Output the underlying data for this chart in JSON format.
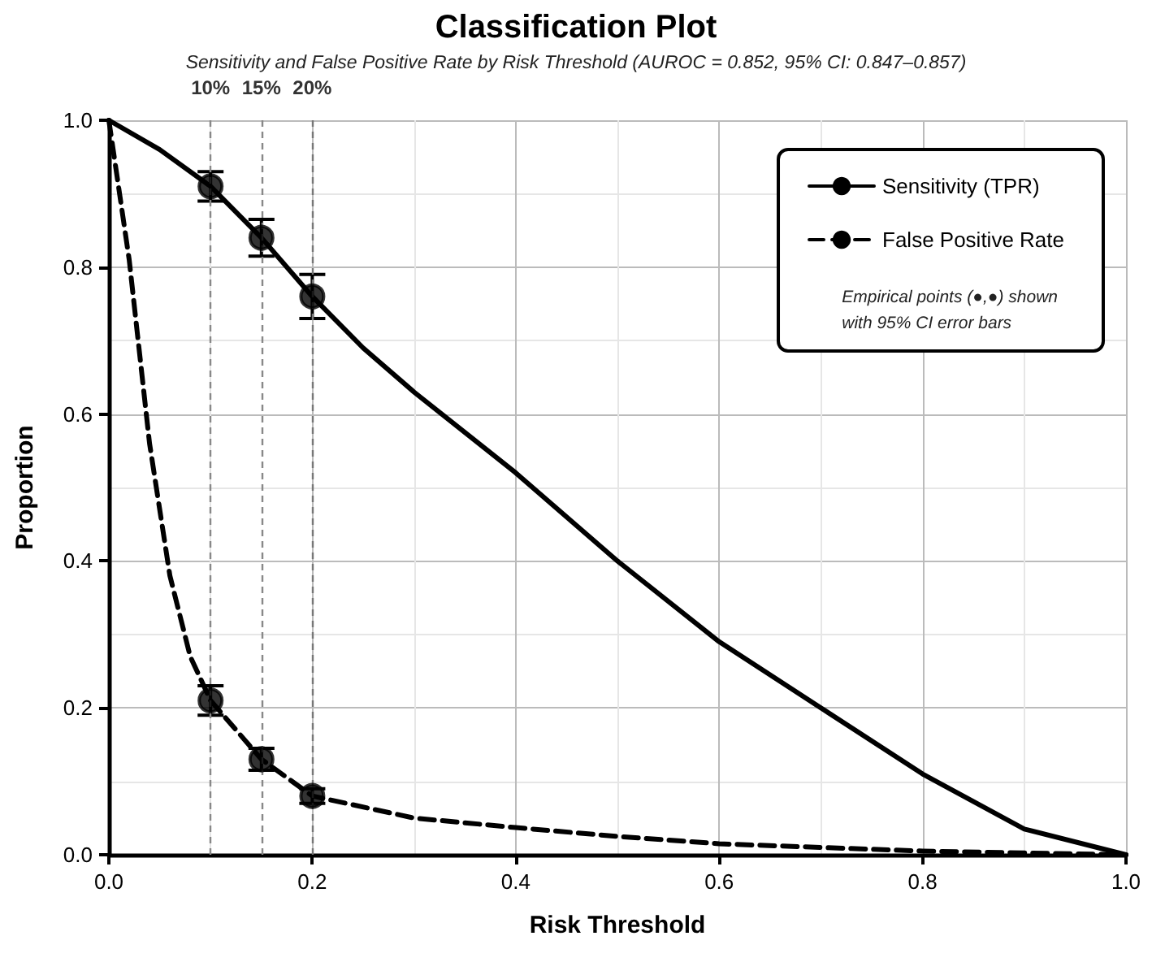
{
  "chart_data": {
    "type": "line",
    "title": "Classification Plot",
    "subtitle": "Sensitivity and False Positive Rate by Risk Threshold (AUROC = 0.852, 95% CI: 0.847–0.857)",
    "xlabel": "Risk Threshold",
    "ylabel": "Proportion",
    "series": [
      {
        "name": "Sensitivity (TPR)",
        "color": "#000000",
        "line_style": "solid",
        "x": [
          0,
          0.05,
          0.1,
          0.15,
          0.2,
          0.25,
          0.3,
          0.4,
          0.5,
          0.6,
          0.7,
          0.8,
          0.9,
          1.0
        ],
        "values": [
          1.0,
          0.96,
          0.91,
          0.84,
          0.76,
          0.69,
          0.63,
          0.52,
          0.4,
          0.29,
          0.2,
          0.11,
          0.035,
          0
        ]
      },
      {
        "type": "scatter",
        "color": "#000000",
        "marker": "circle",
        "x": [
          0.1,
          0.15,
          0.2
        ],
        "values": [
          0.91,
          0.84,
          0.76
        ],
        "errors": [
          0.02,
          0.025,
          0.03
        ]
      },
      {
        "name": "False Positive Rate",
        "color": "#000000",
        "line_style": "dashed",
        "x": [
          0,
          0.02,
          0.04,
          0.06,
          0.08,
          0.1,
          0.15,
          0.2,
          0.3,
          0.4,
          0.5,
          0.6,
          0.8,
          1.0
        ],
        "values": [
          1.0,
          0.81,
          0.56,
          0.38,
          0.27,
          0.21,
          0.13,
          0.08,
          0.05,
          0.037,
          0.025,
          0.015,
          0.005,
          0
        ]
      },
      {
        "type": "scatter",
        "color": "#000000",
        "marker": "circle",
        "x": [
          0.1,
          0.15,
          0.2
        ],
        "values": [
          0.21,
          0.13,
          0.08
        ],
        "errors": [
          0.02,
          0.015,
          0.01
        ]
      }
    ],
    "xlim": [
      0,
      1
    ],
    "xticks": [
      {
        "value": 0,
        "label": "0.0"
      },
      0.2,
      0.4,
      0.6,
      0.8,
      {
        "value": 1,
        "label": "1.0"
      }
    ],
    "ylim": [
      0,
      1
    ],
    "yticks": [
      {
        "value": 0,
        "label": "0.0"
      },
      0.2,
      0.4,
      0.6,
      0.8,
      {
        "value": 1,
        "label": "1.0"
      }
    ],
    "ref_lines": [
      {
        "axis": "x",
        "value": 0.1,
        "label": "10%",
        "color": "#888888",
        "line_style": "dashed"
      },
      {
        "axis": "x",
        "value": 0.15,
        "label": "15%",
        "color": "#888888",
        "line_style": "dashed"
      },
      {
        "axis": "x",
        "value": 0.2,
        "label": "20%",
        "color": "#777777",
        "line_style": "dashed"
      }
    ],
    "annotations": [
      "Empirical points (●,●) shown with 95% CI error bars"
    ],
    "grid": true,
    "legend": "top right"
  }
}
